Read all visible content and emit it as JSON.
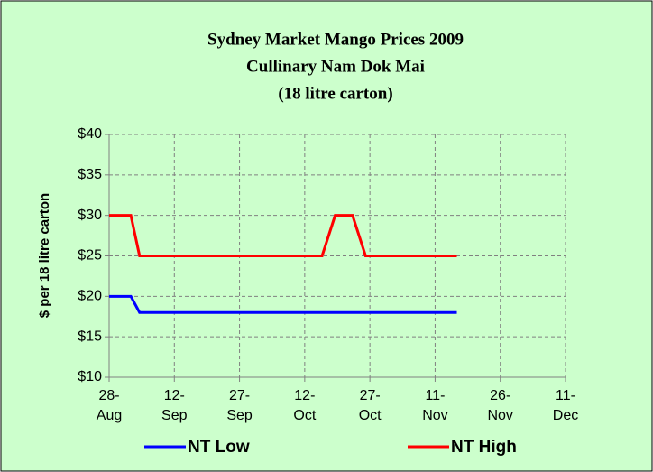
{
  "chart_data": {
    "type": "line",
    "title": [
      "Sydney Market Mango Prices 2009",
      "Cullinary Nam Dok Mai",
      "(18 litre carton)"
    ],
    "y_label": "$ per 18 litre carton",
    "x": [
      "2009-08-28",
      "2009-09-02",
      "2009-09-04",
      "2009-10-16",
      "2009-10-19",
      "2009-10-23",
      "2009-10-26",
      "2009-11-16"
    ],
    "series": [
      {
        "name": "NT Low",
        "color": "#0000ff",
        "values": [
          20,
          20,
          18,
          18,
          18,
          18,
          18,
          18
        ]
      },
      {
        "name": "NT High",
        "color": "#ff0000",
        "values": [
          30,
          30,
          25,
          25,
          30,
          30,
          25,
          25
        ]
      }
    ],
    "xlim": [
      "2009-08-28",
      "2009-12-11"
    ],
    "xticks": [
      {
        "value": "2009-08-28",
        "label": "28-Aug"
      },
      {
        "value": "2009-09-12",
        "label": "12-Sep"
      },
      {
        "value": "2009-09-27",
        "label": "27-Sep"
      },
      {
        "value": "2009-10-12",
        "label": "12-Oct"
      },
      {
        "value": "2009-10-27",
        "label": "27-Oct"
      },
      {
        "value": "2009-11-11",
        "label": "11-Nov"
      },
      {
        "value": "2009-11-26",
        "label": "26-Nov"
      },
      {
        "value": "2009-12-11",
        "label": "11-Dec"
      }
    ],
    "ylim": [
      10,
      40
    ],
    "yticks": [
      {
        "value": 10,
        "label": "$10"
      },
      {
        "value": 15,
        "label": "$15"
      },
      {
        "value": 20,
        "label": "$20"
      },
      {
        "value": 25,
        "label": "$25"
      },
      {
        "value": 30,
        "label": "$30"
      },
      {
        "value": 35,
        "label": "$35"
      },
      {
        "value": 40,
        "label": "$40"
      }
    ],
    "grid": true,
    "legend": "bottom"
  }
}
